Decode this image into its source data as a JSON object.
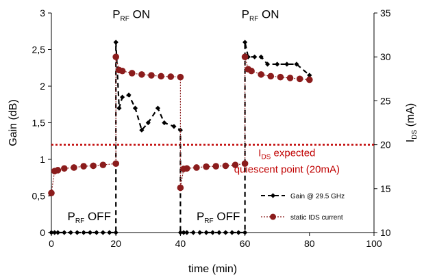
{
  "chart_data": {
    "type": "line",
    "xlabel": "time (min)",
    "ylabel": "Gain (dB)",
    "y2label_main": "I",
    "y2label_sub": "DS",
    "y2label_unit": " (mA)",
    "xlim": [
      0,
      100
    ],
    "ylim": [
      0,
      3
    ],
    "y2lim": [
      10,
      35
    ],
    "xticks": [
      "0",
      "20",
      "40",
      "60",
      "80",
      "100"
    ],
    "yticks": [
      "0",
      "0,5",
      "1",
      "1,5",
      "2",
      "2,5",
      "3"
    ],
    "y2ticks": [
      "10",
      "15",
      "20",
      "25",
      "30",
      "35"
    ],
    "grid": false,
    "legend_position": "lower-right",
    "series": [
      {
        "name": "Gain @ 29.5 GHz",
        "axis": "left",
        "color": "#000000",
        "style": "dashed",
        "marker": "diamond",
        "x": [
          0,
          1,
          2,
          4,
          6,
          8,
          10,
          12,
          14,
          16,
          18,
          20,
          20,
          20,
          21,
          22,
          24,
          26,
          28,
          30,
          33,
          35,
          38,
          40,
          40,
          41,
          42,
          44,
          46,
          48,
          50,
          52,
          54,
          56,
          58,
          60,
          60,
          61,
          63,
          65,
          67,
          70,
          73,
          76,
          80
        ],
        "y": [
          0,
          0,
          0,
          0,
          0,
          0,
          0,
          0,
          0,
          0,
          0,
          0,
          2.6,
          2.6,
          1.7,
          1.85,
          1.88,
          1.7,
          1.4,
          1.5,
          1.7,
          1.5,
          1.45,
          1.4,
          0,
          0,
          0,
          0,
          0,
          0,
          0,
          0,
          0,
          0,
          0,
          0,
          2.6,
          2.4,
          2.4,
          2.4,
          2.3,
          2.3,
          2.3,
          2.3,
          2.15
        ]
      },
      {
        "name": "static IDS current",
        "axis": "right",
        "color": "#8b1c1c",
        "style": "dotted",
        "marker": "circle",
        "x": [
          0,
          1,
          2,
          4,
          7,
          10,
          13,
          16,
          20,
          20,
          21,
          22,
          25,
          28,
          31,
          34,
          37,
          40,
          40,
          41,
          42,
          45,
          48,
          51,
          54,
          57,
          60,
          60,
          61,
          62,
          65,
          68,
          71,
          74,
          77,
          80
        ],
        "y": [
          14.5,
          17.0,
          17.1,
          17.3,
          17.4,
          17.55,
          17.6,
          17.7,
          17.85,
          30.0,
          28.5,
          28.4,
          28.15,
          28.0,
          27.9,
          27.8,
          27.75,
          27.7,
          15.1,
          17.25,
          17.3,
          17.4,
          17.5,
          17.55,
          17.6,
          17.7,
          17.85,
          30.0,
          28.6,
          28.4,
          28.0,
          27.8,
          27.7,
          27.6,
          27.5,
          27.4
        ]
      }
    ],
    "reference_line": {
      "axis": "right",
      "value": 20,
      "color": "#c00000"
    },
    "annotations": [
      {
        "id": "rf-on-1",
        "main": "P",
        "sub": "RF",
        "rest": " ON",
        "x": 20,
        "y": 2.93
      },
      {
        "id": "rf-on-2",
        "main": "P",
        "sub": "RF",
        "rest": " ON",
        "x": 60,
        "y": 2.93
      },
      {
        "id": "rf-off-1",
        "main": "P",
        "sub": "RF",
        "rest": " OFF",
        "x": 5,
        "y": 0.17
      },
      {
        "id": "rf-off-2",
        "main": "P",
        "sub": "RF",
        "rest": " OFF",
        "x": 45,
        "y": 0.17
      }
    ],
    "ids_annotation": {
      "line1_main": "I",
      "line1_sub": "DS",
      "line1_rest": " expected",
      "line2": "quiescent point (20mA)",
      "color": "#c00000"
    }
  }
}
